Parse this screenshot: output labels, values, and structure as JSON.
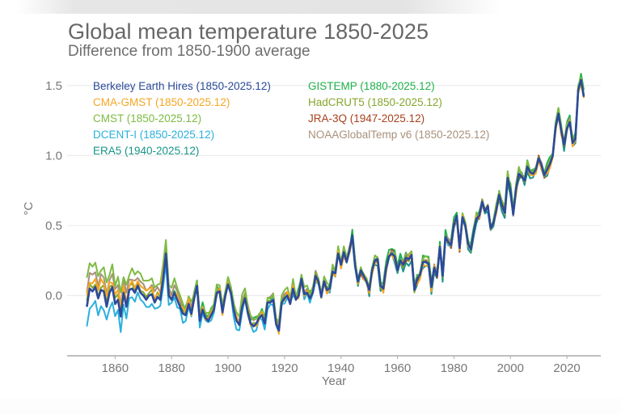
{
  "chart_data": {
    "type": "line",
    "title": "Global mean temperature 1850-2025",
    "subtitle": "Difference from 1850-1900 average",
    "xlabel": "Year",
    "ylabel": "°C",
    "xlim": [
      1843,
      2032
    ],
    "ylim": [
      -0.43,
      1.62
    ],
    "xticks": [
      1860,
      1880,
      1900,
      1920,
      1940,
      1960,
      1980,
      2000,
      2020
    ],
    "yticks": [
      0.0,
      0.5,
      1.0,
      1.5
    ],
    "ytick_labels": [
      "0.0",
      "0.5",
      "1.0",
      "1.5"
    ],
    "grid": "horizontal",
    "legend_position": "top-left",
    "baseline": {
      "start": 1850,
      "values": [
        -0.08,
        0.05,
        0.03,
        0.06,
        -0.02,
        0.04,
        0.03,
        -0.08,
        0.02,
        0.06,
        -0.06,
        -0.03,
        -0.15,
        0.02,
        -0.08,
        0.04,
        0.05,
        0.02,
        0.07,
        0.02,
        0.0,
        -0.03,
        0.0,
        0.01,
        -0.05,
        -0.01,
        -0.03,
        0.12,
        0.3,
        0.0,
        -0.03,
        0.02,
        -0.03,
        -0.08,
        -0.13,
        -0.14,
        -0.06,
        -0.13,
        -0.02,
        0.07,
        -0.18,
        -0.1,
        -0.16,
        -0.18,
        -0.14,
        -0.1,
        0.02,
        0.03,
        -0.12,
        0.0,
        0.08,
        0.02,
        -0.1,
        -0.18,
        -0.21,
        -0.08,
        -0.02,
        -0.12,
        -0.2,
        -0.22,
        -0.2,
        -0.16,
        -0.14,
        -0.2,
        -0.05,
        -0.05,
        -0.03,
        -0.2,
        -0.25,
        -0.05,
        -0.02,
        0.0,
        -0.06,
        0.05,
        -0.03,
        0.0,
        0.12,
        0.01,
        0.02,
        -0.02,
        0.02,
        0.14,
        0.1,
        -0.01,
        0.1,
        0.04,
        0.05,
        0.17,
        0.16,
        0.3,
        0.22,
        0.31,
        0.24,
        0.32,
        0.43,
        0.21,
        0.1,
        0.18,
        0.14,
        0.1,
        0.04,
        0.18,
        0.25,
        0.26,
        0.07,
        0.05,
        0.2,
        0.28,
        0.3,
        0.28,
        0.18,
        0.25,
        0.22,
        0.27,
        0.26,
        0.29,
        0.04,
        0.12,
        0.15,
        0.24,
        0.24,
        0.23,
        0.06,
        0.2,
        0.14,
        0.35,
        0.14,
        0.42,
        0.38,
        0.36,
        0.51,
        0.57,
        0.34,
        0.56,
        0.5,
        0.37,
        0.33,
        0.46,
        0.55,
        0.57,
        0.67,
        0.6,
        0.64,
        0.48,
        0.52,
        0.61,
        0.72,
        0.64,
        0.59,
        0.84,
        0.75,
        0.58,
        0.76,
        0.87,
        0.85,
        0.82,
        0.92,
        0.88,
        0.87,
        0.9,
        0.98,
        0.93,
        0.86,
        0.9,
        0.94,
        1.0,
        1.2,
        1.3,
        1.18,
        1.08,
        1.19,
        1.24,
        1.09,
        1.12,
        1.47,
        1.54,
        1.42
      ]
    },
    "series": [
      {
        "name": "Berkeley Earth Hires",
        "period": "1850-2025.12",
        "color": "#2b4a9a",
        "start": 1850,
        "offset": 0.0,
        "jitter": 0.0,
        "early_bias": 0.0
      },
      {
        "name": "CMA-GMST",
        "period": "1850-2025.12",
        "color": "#f5a623",
        "start": 1850,
        "offset": -0.01,
        "jitter": 0.03,
        "early_bias": 0.08
      },
      {
        "name": "CMST",
        "period": "1850-2025.12",
        "color": "#7dbb42",
        "start": 1850,
        "offset": 0.02,
        "jitter": 0.03,
        "early_bias": 0.16
      },
      {
        "name": "DCENT-I",
        "period": "1850-2025.12",
        "color": "#2ab0dd",
        "start": 1850,
        "offset": 0.0,
        "jitter": 0.03,
        "early_bias": -0.12
      },
      {
        "name": "ERA5",
        "period": "1940-2025.12",
        "color": "#199488",
        "start": 1940,
        "offset": -0.02,
        "jitter": 0.03,
        "early_bias": 0.0
      },
      {
        "name": "GISTEMP",
        "period": "1880-2025.12",
        "color": "#1fb24a",
        "start": 1880,
        "offset": 0.02,
        "jitter": 0.03,
        "early_bias": 0.05
      },
      {
        "name": "HadCRUT5",
        "period": "1850-2025.12",
        "color": "#86a62d",
        "start": 1850,
        "offset": 0.0,
        "jitter": 0.02,
        "early_bias": 0.03
      },
      {
        "name": "JRA-3Q",
        "period": "1947-2025.12",
        "color": "#a8401c",
        "start": 1947,
        "offset": 0.0,
        "jitter": 0.03,
        "early_bias": 0.0
      },
      {
        "name": "NOAAGlobalTemp v6",
        "period": "1850-2025.12",
        "color": "#a8917c",
        "start": 1850,
        "offset": 0.01,
        "jitter": 0.02,
        "early_bias": 0.1
      }
    ]
  }
}
